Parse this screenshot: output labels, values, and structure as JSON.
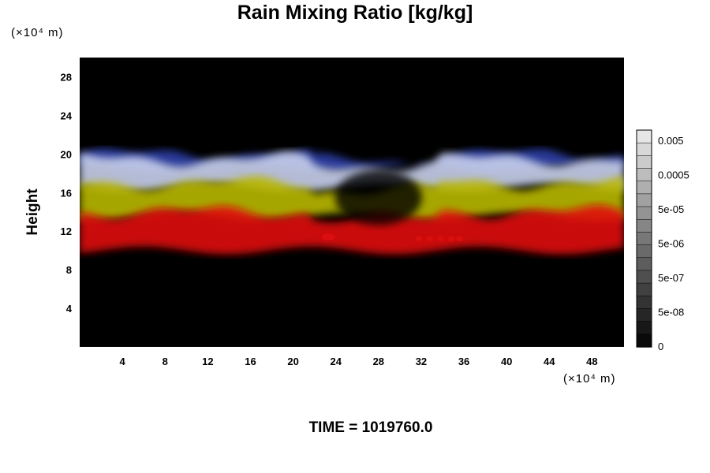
{
  "chart_data": {
    "type": "heatmap",
    "title": "Rain Mixing Ratio [kg/kg]",
    "ylabel": "Height",
    "y_unit_label": "(×10⁴ m)",
    "x_unit_label": "(×10⁴ m)",
    "xlim": [
      0,
      51
    ],
    "ylim": [
      0,
      30
    ],
    "x_ticks": [
      4,
      8,
      12,
      16,
      20,
      24,
      28,
      32,
      36,
      40,
      44,
      48
    ],
    "y_ticks": [
      4,
      8,
      12,
      16,
      20,
      24,
      28
    ],
    "colorbar": {
      "labels": [
        "0.005",
        "0.0005",
        "5e-05",
        "5e-06",
        "5e-07",
        "5e-08",
        "0"
      ],
      "levels": 17
    },
    "layers": [
      {
        "color": "#2f3fa8",
        "y_range": [
          18.5,
          20
        ]
      },
      {
        "color": "#c8d0ec",
        "y_range": [
          16.5,
          19.5
        ]
      },
      {
        "color": "#b9b800",
        "y_range": [
          13.5,
          17
        ]
      },
      {
        "color": "#e01010",
        "y_range": [
          10,
          14
        ]
      }
    ],
    "background_color": "#000000"
  },
  "footer": {
    "time_label": "TIME = 1019760.0"
  }
}
